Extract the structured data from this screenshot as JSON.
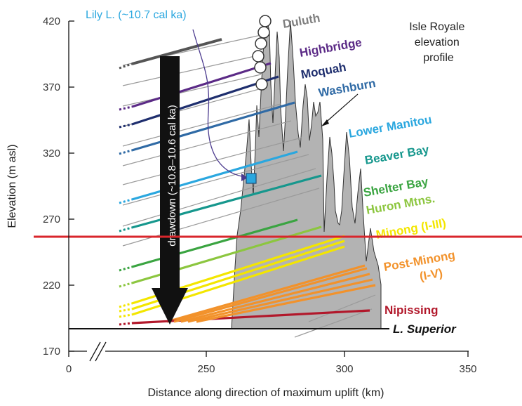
{
  "chart_data": {
    "type": "line",
    "xlabel": "Distance along direction of maximum uplift (km)",
    "ylabel": "Elevation (m asl)",
    "xticks": [
      "0",
      "250",
      "300",
      "350"
    ],
    "yticks": [
      "420",
      "370",
      "320",
      "270",
      "220",
      "170"
    ],
    "xlim": [
      0,
      350
    ],
    "ylim": [
      170,
      420
    ],
    "x_axis_break": "0 to 250 km",
    "grid": false,
    "legend": "labels drawn next to lines (right side)",
    "lake_superior": {
      "label": "L. Superior",
      "elevation": 183
    },
    "reference_line": {
      "elevation": 256,
      "color": "#d9262c"
    },
    "drawdown": {
      "label": "drawdown (~10.8–10.6 cal ka)",
      "from_elevation": 406,
      "to_elevation": 189
    },
    "lily_lake": {
      "label": "Lily L. (~10.7 cal ka)",
      "color": "#2aa7df",
      "x": 266,
      "elevation": 298
    },
    "isle_royale": {
      "label": "Isle Royale\nelevation\nprofile",
      "fill": "#b3b3b3"
    },
    "series": [
      {
        "name": "Duluth",
        "color": "#555555",
        "points": [
          [
            243,
            406
          ],
          [
            256,
            412
          ]
        ],
        "label_color": "#808080"
      },
      {
        "name": "Highbridge",
        "color": "#5b2a86",
        "points": [
          [
            243,
            384
          ],
          [
            264,
            386
          ]
        ],
        "label_color": "#5b2a86"
      },
      {
        "name": "Moquah",
        "color": "#1e2e6e",
        "points": [
          [
            243,
            370
          ],
          [
            273,
            380
          ]
        ],
        "label_color": "#1e2e6e"
      },
      {
        "name": "Washburn",
        "color": "#2f6aa5",
        "points": [
          [
            243,
            352
          ],
          [
            285,
            360
          ]
        ],
        "label_color": "#2f6aa5"
      },
      {
        "name": "Lower Manitou",
        "color": "#2aa7df",
        "points": [
          [
            243,
            332
          ],
          [
            288,
            322
          ]
        ],
        "label_color": "#2aa7df"
      },
      {
        "name": "Beaver Bay",
        "color": "#16978d",
        "points": [
          [
            243,
            300
          ],
          [
            294,
            304
          ]
        ],
        "label_color": "#16978d"
      },
      {
        "name": "Shelter Bay",
        "color": "#3aa441",
        "points": [
          [
            243,
            278
          ],
          [
            288,
            271
          ]
        ],
        "label_color": "#3aa441"
      },
      {
        "name": "Huron Mtns.",
        "color": "#8cc63f",
        "points": [
          [
            243,
            240
          ],
          [
            292,
            265
          ]
        ],
        "label_color": "#8cc63f"
      },
      {
        "name": "Minong (I-III)",
        "color": "#f3e600",
        "points": [
          [
            243,
            215
          ],
          [
            299,
            255
          ]
        ],
        "label_color": "#f3e600"
      },
      {
        "name": "Post-Minong (I-V)",
        "color": "#f2922b",
        "points": [
          [
            246,
            192
          ],
          [
            310,
            234
          ]
        ],
        "label_color": "#f2922b"
      },
      {
        "name": "Nipissing",
        "color": "#b2182b",
        "points": [
          [
            243,
            191
          ],
          [
            308,
            200
          ]
        ],
        "label_color": "#b2182b"
      }
    ]
  }
}
